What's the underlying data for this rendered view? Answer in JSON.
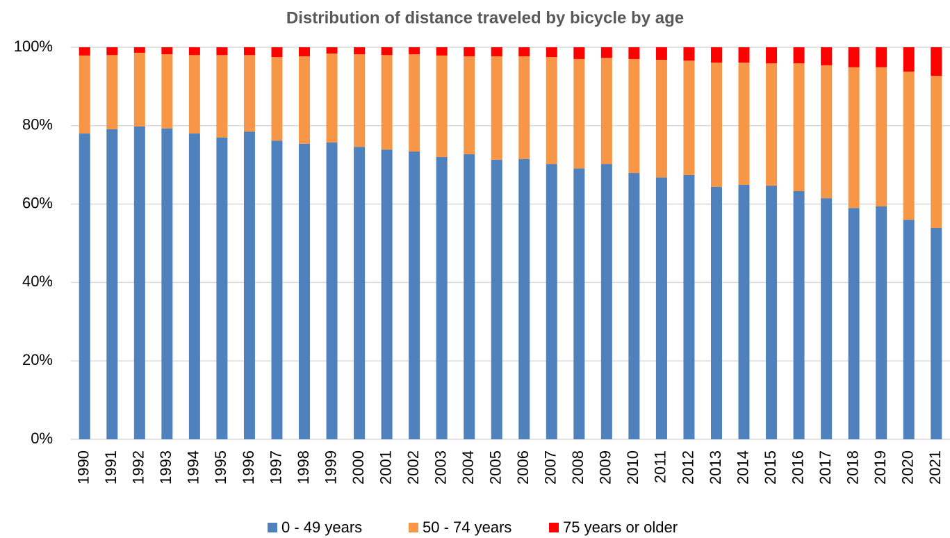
{
  "chart_data": {
    "type": "stacked_bar",
    "title": "Distribution of distance traveled by bicycle by age",
    "categories": [
      "1990",
      "1991",
      "1992",
      "1993",
      "1994",
      "1995",
      "1996",
      "1997",
      "1998",
      "1999",
      "2000",
      "2001",
      "2002",
      "2003",
      "2004",
      "2005",
      "2006",
      "2007",
      "2008",
      "2009",
      "2010",
      "2011",
      "2012",
      "2013",
      "2014",
      "2015",
      "2016",
      "2017",
      "2018",
      "2019",
      "2020",
      "2021"
    ],
    "series": [
      {
        "name": "0 - 49 years",
        "color": "#4f81bd",
        "values": [
          78.0,
          79.1,
          79.8,
          79.3,
          78.0,
          77.0,
          78.5,
          76.2,
          75.4,
          75.7,
          74.6,
          73.9,
          73.4,
          72.0,
          72.7,
          71.3,
          71.5,
          70.2,
          69.1,
          70.2,
          67.9,
          66.8,
          67.4,
          64.4,
          64.9,
          64.7,
          63.3,
          61.5,
          59.0,
          59.4,
          56.0,
          53.9
        ]
      },
      {
        "name": "50 - 74 years",
        "color": "#f79646",
        "values": [
          19.9,
          18.9,
          18.8,
          18.9,
          20.0,
          21.0,
          19.5,
          21.3,
          22.3,
          22.7,
          23.6,
          24.1,
          24.8,
          25.9,
          25.0,
          26.4,
          26.2,
          27.3,
          27.9,
          27.1,
          29.1,
          30.0,
          29.2,
          31.7,
          31.2,
          31.2,
          32.6,
          33.9,
          35.9,
          35.5,
          37.8,
          38.8
        ]
      },
      {
        "name": "75 years or older",
        "color": "#ff0000",
        "values": [
          2.1,
          2.0,
          1.4,
          1.8,
          2.0,
          2.0,
          2.0,
          2.5,
          2.3,
          1.6,
          1.8,
          2.0,
          1.8,
          2.1,
          2.3,
          2.3,
          2.3,
          2.5,
          3.0,
          2.7,
          3.0,
          3.2,
          3.4,
          3.9,
          3.9,
          4.1,
          4.1,
          4.6,
          5.1,
          5.1,
          6.2,
          7.3
        ]
      }
    ],
    "ylim": [
      0,
      100
    ],
    "yticks": [
      {
        "value": 0,
        "label": "0%"
      },
      {
        "value": 20,
        "label": "20%"
      },
      {
        "value": 40,
        "label": "40%"
      },
      {
        "value": 60,
        "label": "60%"
      },
      {
        "value": 80,
        "label": "80%"
      },
      {
        "value": 100,
        "label": "100%"
      }
    ],
    "grid": true,
    "legend": "bottom"
  }
}
